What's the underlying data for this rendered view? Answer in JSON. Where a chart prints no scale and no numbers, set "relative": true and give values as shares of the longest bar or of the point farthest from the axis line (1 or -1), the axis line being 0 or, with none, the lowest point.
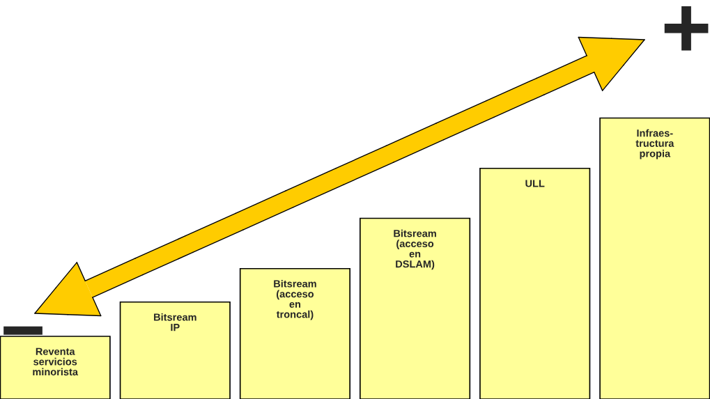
{
  "chart_data": {
    "type": "bar",
    "relative": true,
    "categories": [
      "Reventa\nservicios\nminorista",
      "Bitsream\nIP",
      "Bitsream\n(acceso\nen\ntroncal)",
      "Bitsream\n(acceso\nen\nDSLAM)",
      "ULL",
      "Infraes-\ntructura\npropia"
    ],
    "values": [
      0.223,
      0.345,
      0.464,
      0.643,
      0.821,
      1
    ],
    "color": "#ffff99",
    "annotations": [
      "+",
      "−"
    ]
  }
}
